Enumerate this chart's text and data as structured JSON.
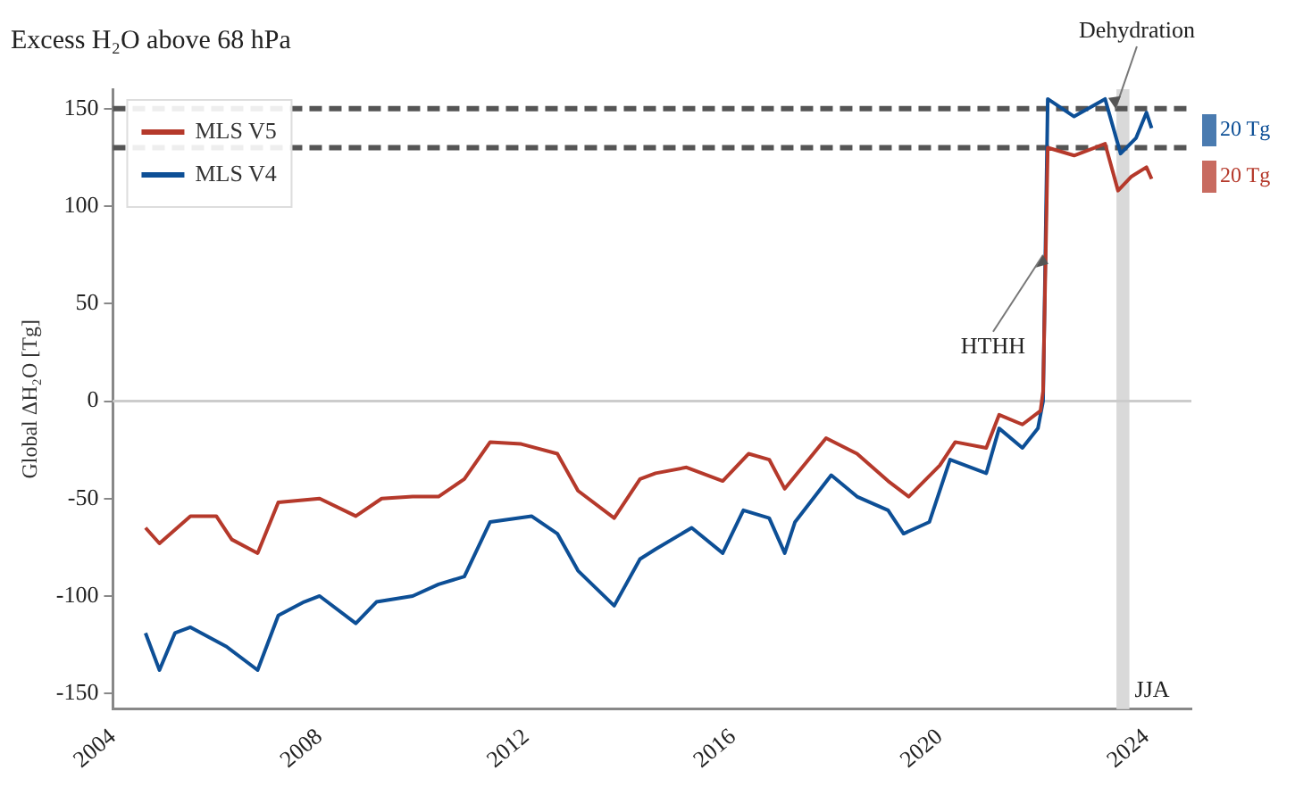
{
  "chart_data": {
    "type": "line",
    "title": "Excess H₂O above 68 hPa",
    "ylabel": "Global ΔH₂O [Tg]",
    "xlim": [
      2004,
      2024.87
    ],
    "xticks": [
      2004,
      2008,
      2012,
      2016,
      2020,
      2024
    ],
    "ylim": [
      -158,
      160
    ],
    "yticks": [
      -150,
      -100,
      -50,
      0,
      50,
      100,
      150
    ],
    "grid": false,
    "legend": "top left",
    "marker": "none",
    "line_style": "solid",
    "series": [
      {
        "name": "MLS V5",
        "color": "#b5392b",
        "x": [
          2004.63,
          2004.9,
          2005.5,
          2006.0,
          2006.3,
          2006.8,
          2007.2,
          2008.0,
          2008.7,
          2009.2,
          2009.8,
          2010.3,
          2010.8,
          2011.3,
          2011.9,
          2012.6,
          2013.0,
          2013.7,
          2014.2,
          2014.5,
          2015.1,
          2015.8,
          2016.3,
          2016.7,
          2017.0,
          2017.8,
          2018.4,
          2019.0,
          2019.4,
          2020.0,
          2020.3,
          2020.9,
          2021.15,
          2021.6,
          2021.95,
          2022.0,
          2022.09,
          2022.6,
          2023.2,
          2023.45,
          2023.7,
          2024.0,
          2024.1
        ],
        "values": [
          -65,
          -73,
          -59,
          -59,
          -71,
          -78,
          -52,
          -50,
          -59,
          -50,
          -49,
          -49,
          -40,
          -21,
          -22,
          -27,
          -46,
          -60,
          -40,
          -37,
          -34,
          -41,
          -27,
          -30,
          -45,
          -19,
          -27,
          -41,
          -49,
          -33,
          -21,
          -24,
          -7,
          -12,
          -5,
          5,
          130,
          126,
          132,
          108,
          115,
          120,
          114
        ]
      },
      {
        "name": "MLS V4",
        "color": "#0d4f96",
        "x": [
          2004.63,
          2004.9,
          2005.2,
          2005.5,
          2006.2,
          2006.8,
          2007.2,
          2007.7,
          2008.0,
          2008.7,
          2009.1,
          2009.8,
          2010.3,
          2010.8,
          2011.3,
          2012.1,
          2012.6,
          2013.0,
          2013.7,
          2014.2,
          2014.5,
          2015.2,
          2015.8,
          2016.2,
          2016.7,
          2017.0,
          2017.2,
          2017.9,
          2018.4,
          2019.0,
          2019.3,
          2019.8,
          2020.2,
          2020.9,
          2021.15,
          2021.6,
          2021.9,
          2022.0,
          2022.09,
          2022.6,
          2023.2,
          2023.5,
          2023.8,
          2024.0,
          2024.1
        ],
        "values": [
          -119,
          -138,
          -119,
          -116,
          -126,
          -138,
          -110,
          -103,
          -100,
          -114,
          -103,
          -100,
          -94,
          -90,
          -62,
          -59,
          -68,
          -87,
          -105,
          -81,
          -76,
          -65,
          -78,
          -56,
          -60,
          -78,
          -62,
          -38,
          -49,
          -56,
          -68,
          -62,
          -30,
          -37,
          -14,
          -24,
          -14,
          0,
          155,
          146,
          155,
          127,
          135,
          148,
          140
        ]
      }
    ],
    "ref_lines": [
      {
        "axis": "y",
        "value": 150,
        "color": "#555555",
        "line_style": "dashed"
      },
      {
        "axis": "y",
        "value": 130,
        "color": "#555555",
        "line_style": "dashed"
      },
      {
        "axis": "y",
        "value": 0,
        "color": "#cccccc",
        "line_style": "solid"
      }
    ],
    "bands": [
      {
        "axis": "x",
        "from": 2023.42,
        "to": 2023.67,
        "label": "JJA",
        "color": "#d9d9d9"
      }
    ],
    "annotations": [
      {
        "text": "HTHH",
        "x": 2022.0,
        "y": 75
      },
      {
        "text": "Dehydration",
        "x": 2023.4,
        "y": 150
      },
      "20 Tg",
      "20 Tg"
    ]
  }
}
